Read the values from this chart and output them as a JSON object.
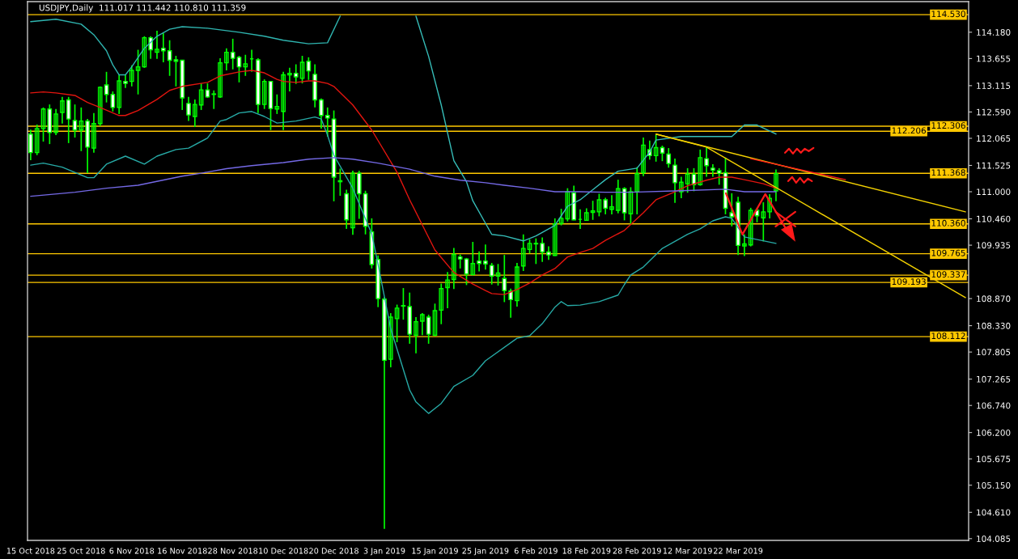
{
  "chart_data": {
    "type": "candlestick",
    "title": "USDJPY,Daily  111.017 111.442 110.810 111.359",
    "color": "#00ff00",
    "categories": [
      "15 Oct 2018",
      null,
      null,
      null,
      null,
      null,
      null,
      null,
      "25 Oct 2018",
      null,
      null,
      null,
      null,
      null,
      null,
      null,
      "6 Nov 2018",
      null,
      null,
      null,
      null,
      null,
      null,
      null,
      "16 Nov 2018",
      null,
      null,
      null,
      null,
      null,
      null,
      null,
      "28 Nov 2018",
      null,
      null,
      null,
      null,
      null,
      null,
      null,
      "10 Dec 2018",
      null,
      null,
      null,
      null,
      null,
      null,
      null,
      "20 Dec 2018",
      null,
      null,
      null,
      null,
      null,
      null,
      null,
      "3 Jan 2019",
      null,
      null,
      null,
      null,
      null,
      null,
      null,
      "15 Jan 2019",
      null,
      null,
      null,
      null,
      null,
      null,
      null,
      "25 Jan 2019",
      null,
      null,
      null,
      null,
      null,
      null,
      null,
      "6 Feb 2019",
      null,
      null,
      null,
      null,
      null,
      null,
      null,
      "18 Feb 2019",
      null,
      null,
      null,
      null,
      null,
      null,
      null,
      "28 Feb 2019",
      null,
      null,
      null,
      null,
      null,
      null,
      null,
      "12 Mar 2019",
      null,
      null,
      null,
      null,
      null,
      null,
      null,
      "22 Mar 2019",
      null,
      null,
      null,
      null,
      null,
      null,
      null,
      null,
      null,
      null,
      null,
      null,
      null,
      null,
      null,
      null,
      null,
      null,
      null,
      null,
      null,
      null,
      null,
      null,
      null,
      null,
      null,
      null,
      null,
      null,
      null,
      null,
      null,
      null,
      null,
      null
    ],
    "ohlc": [
      [
        112.15,
        112.24,
        111.63,
        111.78
      ],
      [
        111.78,
        112.34,
        111.73,
        112.26
      ],
      [
        112.26,
        112.68,
        112.0,
        112.65
      ],
      [
        112.65,
        112.74,
        111.95,
        112.18
      ],
      [
        112.18,
        112.65,
        112.13,
        112.55
      ],
      [
        112.58,
        112.89,
        112.36,
        112.81
      ],
      [
        112.83,
        112.89,
        111.97,
        112.45
      ],
      [
        112.42,
        112.74,
        112.08,
        112.23
      ],
      [
        112.23,
        112.68,
        111.81,
        112.41
      ],
      [
        112.41,
        112.45,
        111.37,
        111.89
      ],
      [
        111.87,
        112.57,
        111.78,
        112.36
      ],
      [
        112.36,
        113.1,
        112.31,
        113.08
      ],
      [
        113.13,
        113.39,
        112.78,
        112.94
      ],
      [
        112.94,
        113.0,
        112.6,
        112.68
      ],
      [
        112.68,
        113.33,
        112.55,
        113.21
      ],
      [
        113.2,
        113.34,
        113.07,
        113.16
      ],
      [
        113.2,
        113.52,
        113.1,
        113.42
      ],
      [
        113.42,
        113.83,
        112.94,
        113.49
      ],
      [
        113.49,
        114.1,
        113.47,
        114.07
      ],
      [
        114.07,
        114.1,
        113.65,
        113.83
      ],
      [
        113.78,
        114.21,
        113.65,
        113.84
      ],
      [
        113.86,
        114.16,
        113.58,
        113.81
      ],
      [
        113.81,
        114.02,
        113.31,
        113.62
      ],
      [
        113.63,
        113.71,
        113.1,
        113.6
      ],
      [
        113.62,
        113.63,
        112.63,
        112.87
      ],
      [
        112.76,
        112.89,
        112.41,
        112.53
      ],
      [
        112.5,
        112.84,
        112.29,
        112.74
      ],
      [
        112.73,
        113.16,
        112.63,
        113.03
      ],
      [
        113.03,
        113.16,
        112.87,
        112.89
      ],
      [
        112.95,
        113.02,
        112.65,
        112.94
      ],
      [
        112.89,
        113.66,
        112.87,
        113.57
      ],
      [
        113.57,
        113.86,
        113.42,
        113.78
      ],
      [
        113.78,
        114.05,
        113.44,
        113.66
      ],
      [
        113.68,
        113.71,
        113.18,
        113.49
      ],
      [
        113.49,
        113.73,
        113.31,
        113.55
      ],
      [
        113.65,
        113.83,
        113.39,
        113.65
      ],
      [
        113.63,
        113.66,
        112.57,
        112.74
      ],
      [
        112.74,
        113.24,
        112.65,
        113.2
      ],
      [
        113.2,
        113.21,
        112.23,
        112.66
      ],
      [
        112.65,
        112.94,
        112.55,
        112.7
      ],
      [
        112.6,
        113.39,
        112.23,
        113.33
      ],
      [
        113.33,
        113.47,
        113.0,
        113.36
      ],
      [
        113.36,
        113.54,
        113.15,
        113.29
      ],
      [
        113.26,
        113.71,
        113.16,
        113.58
      ],
      [
        113.6,
        113.68,
        113.23,
        113.41
      ],
      [
        113.34,
        113.54,
        112.68,
        112.83
      ],
      [
        112.83,
        112.86,
        112.26,
        112.52
      ],
      [
        112.52,
        112.68,
        112.1,
        112.47
      ],
      [
        112.45,
        112.62,
        110.81,
        111.29
      ],
      [
        111.22,
        111.46,
        110.92,
        111.2
      ],
      [
        110.96,
        111.04,
        110.26,
        110.44
      ],
      [
        110.28,
        111.42,
        110.14,
        111.37
      ],
      [
        111.37,
        111.42,
        110.46,
        110.96
      ],
      [
        110.96,
        111.02,
        110.15,
        110.31
      ],
      [
        110.2,
        110.47,
        109.47,
        109.55
      ],
      [
        109.65,
        109.73,
        108.7,
        108.87
      ],
      [
        108.86,
        108.9,
        104.28,
        107.64
      ],
      [
        107.66,
        108.58,
        107.5,
        108.5
      ],
      [
        108.47,
        108.75,
        108.0,
        108.68
      ],
      [
        108.73,
        109.08,
        108.45,
        108.72
      ],
      [
        108.71,
        108.99,
        107.97,
        108.16
      ],
      [
        108.14,
        108.5,
        107.78,
        108.41
      ],
      [
        108.42,
        108.58,
        108.14,
        108.55
      ],
      [
        108.5,
        108.55,
        107.97,
        108.16
      ],
      [
        108.14,
        108.77,
        108.12,
        108.63
      ],
      [
        108.64,
        109.17,
        108.36,
        109.07
      ],
      [
        109.09,
        109.4,
        108.68,
        109.24
      ],
      [
        109.25,
        109.88,
        109.06,
        109.75
      ],
      [
        109.7,
        109.75,
        109.47,
        109.66
      ],
      [
        109.66,
        109.68,
        109.14,
        109.36
      ],
      [
        109.35,
        110.0,
        109.33,
        109.57
      ],
      [
        109.62,
        109.81,
        109.41,
        109.57
      ],
      [
        109.62,
        109.95,
        109.45,
        109.56
      ],
      [
        109.53,
        109.58,
        109.15,
        109.32
      ],
      [
        109.32,
        109.56,
        109.13,
        109.38
      ],
      [
        109.27,
        109.74,
        108.8,
        109.03
      ],
      [
        109.02,
        109.07,
        108.49,
        108.85
      ],
      [
        108.83,
        109.58,
        108.71,
        109.5
      ],
      [
        109.52,
        110.15,
        109.42,
        109.87
      ],
      [
        109.85,
        110.05,
        109.77,
        109.97
      ],
      [
        109.97,
        110.07,
        109.56,
        109.96
      ],
      [
        109.97,
        110.09,
        109.6,
        109.8
      ],
      [
        109.8,
        109.91,
        109.64,
        109.74
      ],
      [
        109.73,
        110.47,
        109.72,
        110.36
      ],
      [
        110.37,
        110.66,
        110.33,
        110.47
      ],
      [
        110.46,
        111.07,
        110.41,
        111.0
      ],
      [
        110.98,
        111.12,
        110.43,
        110.44
      ],
      [
        110.45,
        110.65,
        110.26,
        110.45
      ],
      [
        110.43,
        110.67,
        110.43,
        110.58
      ],
      [
        110.59,
        110.82,
        110.44,
        110.62
      ],
      [
        110.6,
        110.96,
        110.51,
        110.84
      ],
      [
        110.84,
        110.88,
        110.55,
        110.67
      ],
      [
        110.65,
        110.93,
        110.55,
        110.7
      ],
      [
        110.63,
        111.24,
        110.57,
        111.06
      ],
      [
        111.06,
        111.09,
        110.43,
        110.58
      ],
      [
        110.56,
        111.09,
        110.35,
        111.0
      ],
      [
        111.0,
        111.49,
        110.55,
        111.36
      ],
      [
        111.38,
        112.08,
        111.31,
        111.93
      ],
      [
        111.84,
        112.02,
        111.64,
        111.72
      ],
      [
        111.72,
        112.14,
        111.6,
        111.88
      ],
      [
        111.88,
        111.92,
        111.61,
        111.77
      ],
      [
        111.75,
        111.87,
        111.48,
        111.56
      ],
      [
        111.53,
        111.66,
        110.78,
        111.18
      ],
      [
        111.0,
        111.3,
        110.87,
        111.19
      ],
      [
        111.16,
        111.47,
        110.98,
        111.35
      ],
      [
        111.35,
        111.47,
        111.01,
        111.14
      ],
      [
        111.14,
        111.84,
        111.12,
        111.68
      ],
      [
        111.66,
        111.9,
        111.3,
        111.52
      ],
      [
        111.47,
        111.55,
        111.3,
        111.43
      ],
      [
        111.42,
        111.47,
        111.14,
        111.37
      ],
      [
        111.38,
        111.68,
        110.55,
        110.67
      ],
      [
        110.58,
        110.97,
        110.31,
        110.5
      ],
      [
        110.79,
        110.9,
        109.74,
        109.93
      ],
      [
        109.92,
        110.15,
        109.72,
        109.96
      ],
      [
        109.94,
        110.68,
        109.91,
        110.63
      ],
      [
        110.63,
        110.68,
        110.39,
        110.52
      ],
      [
        110.48,
        110.79,
        110.01,
        110.6
      ],
      [
        110.6,
        110.95,
        110.47,
        110.87
      ],
      [
        111.017,
        111.442,
        110.81,
        111.359
      ],
      null,
      null,
      null,
      null,
      null,
      null,
      null,
      null,
      null,
      null,
      null,
      null,
      null,
      null,
      null,
      null,
      null,
      null,
      null,
      null,
      null,
      null,
      null,
      null,
      null,
      null,
      null,
      null,
      null,
      null
    ],
    "series": [
      {
        "type": "line",
        "color": "#2fb5b0",
        "values": [
          114.39,
          null,
          null,
          null,
          114.44,
          null,
          null,
          null,
          114.34,
          null,
          114.13,
          null,
          113.81,
          113.53,
          113.33,
          113.33,
          113.49,
          null,
          113.86,
          null,
          114.1,
          null,
          114.24,
          null,
          114.29,
          null,
          null,
          null,
          114.26,
          null,
          null,
          null,
          null,
          114.18,
          null,
          null,
          null,
          114.1,
          null,
          null,
          114.02,
          null,
          null,
          null,
          113.95,
          null,
          null,
          113.97,
          null,
          114.5,
          null,
          null,
          null,
          null,
          null,
          null,
          null,
          null,
          null,
          null,
          null,
          null,
          null,
          null,
          null,
          null,
          null,
          null,
          null,
          null,
          null,
          null,
          null,
          null,
          null,
          null,
          null,
          null,
          null,
          null,
          null,
          null,
          null,
          null,
          null,
          null,
          null,
          null,
          null,
          null,
          null,
          null,
          null,
          null,
          null,
          null,
          null,
          null,
          null,
          null,
          null,
          null,
          null,
          null,
          null,
          null,
          null,
          null,
          null,
          null,
          null,
          null,
          null,
          null,
          null,
          null,
          null,
          null,
          null,
          null,
          null,
          null,
          null,
          null,
          null,
          null,
          null,
          null,
          null,
          null,
          null,
          null,
          null,
          null,
          null,
          null,
          null,
          null,
          null,
          null,
          null,
          null,
          null,
          null,
          null,
          null,
          null,
          null,
          null
        ]
      },
      {
        "type": "line",
        "color": "#36bdb8",
        "values": [
          null,
          null,
          null,
          null,
          null,
          null,
          null,
          null,
          null,
          null,
          null,
          null,
          null,
          null,
          null,
          null,
          null,
          null,
          null,
          null,
          null,
          null,
          null,
          null,
          null,
          null,
          null,
          null,
          null,
          null,
          null,
          null,
          null,
          null,
          null,
          null,
          null,
          null,
          null,
          null,
          null,
          null,
          null,
          null,
          null,
          null,
          null,
          null,
          null,
          null,
          null,
          null,
          null,
          null,
          null,
          null,
          null,
          null,
          null,
          null,
          null,
          114.5,
          null,
          113.7,
          null,
          112.73,
          null,
          111.62,
          null,
          111.2,
          110.82,
          null,
          null,
          110.15,
          null,
          110.12,
          null,
          null,
          110.02,
          null,
          110.12,
          null,
          null,
          110.33,
          null,
          110.71,
          null,
          110.84,
          null,
          111.04,
          null,
          111.24,
          null,
          111.41,
          null,
          null,
          111.47,
          null,
          111.79,
          112.03,
          null,
          null,
          null,
          112.1,
          null,
          null,
          null,
          null,
          null,
          null,
          null,
          112.1,
          null,
          112.33,
          null,
          112.33,
          null,
          null,
          112.15,
          null,
          null,
          null,
          null,
          null,
          null,
          null,
          null,
          null,
          null,
          null,
          null,
          null,
          null,
          null,
          null,
          null,
          null,
          null,
          null,
          null,
          null,
          null,
          null,
          null,
          null,
          null,
          null,
          null,
          null
        ]
      },
      {
        "type": "line",
        "color": "#27aaa6",
        "values": [
          111.53,
          null,
          111.57,
          null,
          null,
          111.49,
          null,
          null,
          null,
          111.28,
          111.28,
          null,
          111.55,
          null,
          null,
          111.71,
          null,
          null,
          111.55,
          null,
          111.71,
          null,
          null,
          111.84,
          null,
          111.87,
          null,
          null,
          112.07,
          null,
          112.41,
          112.44,
          null,
          112.57,
          null,
          112.6,
          null,
          112.5,
          null,
          112.37,
          null,
          null,
          112.41,
          null,
          null,
          112.49,
          112.45,
          112.13,
          111.73,
          null,
          null,
          111.07,
          null,
          null,
          110.16,
          109.55,
          null,
          108.27,
          null,
          null,
          107.05,
          106.81,
          null,
          106.58,
          null,
          106.78,
          null,
          107.12,
          null,
          null,
          107.34,
          null,
          107.63,
          null,
          null,
          null,
          null,
          108.08,
          null,
          108.13,
          null,
          108.37,
          null,
          108.7,
          108.81,
          108.73,
          null,
          108.74,
          null,
          null,
          108.81,
          null,
          null,
          108.94,
          109.15,
          109.34,
          null,
          109.5,
          null,
          null,
          109.87,
          null,
          null,
          null,
          110.15,
          null,
          110.26,
          null,
          110.42,
          null,
          110.5,
          110.47,
          null,
          110.1,
          null,
          null,
          null,
          null,
          109.97,
          null,
          null,
          null,
          null,
          null,
          null,
          null,
          null,
          null,
          null,
          null,
          null,
          null,
          null,
          null,
          null,
          null,
          null,
          null,
          null,
          null,
          null,
          null,
          null,
          null,
          null,
          null,
          null,
          null,
          null
        ]
      },
      {
        "type": "line",
        "color": "#e3150f",
        "values": [
          112.97,
          null,
          112.99,
          null,
          112.97,
          null,
          null,
          112.92,
          null,
          112.78,
          null,
          112.68,
          null,
          null,
          112.52,
          112.52,
          null,
          112.62,
          null,
          null,
          112.84,
          null,
          113.02,
          null,
          113.1,
          null,
          null,
          null,
          113.18,
          null,
          113.31,
          null,
          null,
          113.39,
          null,
          113.42,
          null,
          113.37,
          null,
          113.24,
          113.2,
          null,
          113.18,
          null,
          113.21,
          113.21,
          null,
          113.16,
          113.1,
          null,
          null,
          112.73,
          null,
          null,
          112.23,
          null,
          null,
          null,
          111.39,
          null,
          110.84,
          null,
          110.34,
          null,
          109.84,
          null,
          null,
          109.39,
          null,
          null,
          109.16,
          null,
          109.03,
          108.97,
          null,
          108.95,
          null,
          109.05,
          null,
          109.18,
          null,
          109.34,
          null,
          109.47,
          null,
          109.7,
          null,
          109.79,
          null,
          109.87,
          null,
          110.03,
          null,
          null,
          110.23,
          null,
          null,
          110.58,
          null,
          110.84,
          null,
          null,
          111.0,
          null,
          111.12,
          null,
          null,
          111.23,
          null,
          111.29,
          null,
          111.29,
          null,
          111.24,
          null,
          null,
          111.16,
          null,
          111.07,
          null,
          null,
          null,
          null,
          null,
          null,
          null,
          null,
          null,
          null,
          null,
          null,
          null,
          null,
          null,
          null,
          null,
          null,
          null,
          null,
          null,
          null,
          null,
          null,
          null,
          null,
          null,
          null,
          null,
          null
        ]
      },
      {
        "type": "line",
        "color": "#7469e6",
        "values": [
          110.91,
          null,
          null,
          null,
          null,
          null,
          null,
          110.99,
          null,
          null,
          null,
          null,
          111.07,
          null,
          null,
          null,
          null,
          111.13,
          null,
          null,
          null,
          null,
          null,
          null,
          111.31,
          null,
          null,
          111.37,
          null,
          null,
          null,
          111.46,
          null,
          null,
          null,
          111.52,
          null,
          null,
          null,
          null,
          111.58,
          null,
          null,
          null,
          111.65,
          null,
          null,
          null,
          111.68,
          null,
          null,
          111.65,
          null,
          null,
          null,
          111.57,
          null,
          null,
          null,
          null,
          111.45,
          null,
          null,
          null,
          111.31,
          null,
          null,
          null,
          111.23,
          null,
          null,
          null,
          111.18,
          null,
          null,
          111.13,
          null,
          null,
          null,
          111.07,
          null,
          null,
          null,
          111.0,
          null,
          null,
          null,
          111.0,
          null,
          null,
          null,
          110.99,
          null,
          null,
          null,
          110.99,
          null,
          null,
          null,
          null,
          null,
          null,
          null,
          111.02,
          null,
          null,
          null,
          null,
          null,
          null,
          111.05,
          null,
          null,
          111.0,
          null,
          null,
          null,
          null,
          111.0,
          null,
          null,
          null,
          null,
          null,
          null,
          null,
          null,
          null,
          null,
          null,
          null,
          null,
          null,
          null,
          null,
          null,
          null,
          null,
          null,
          null,
          null,
          null,
          null,
          null,
          null,
          null,
          null,
          null,
          null
        ]
      },
      {
        "type": "line",
        "color": "#f2d000",
        "values": [
          null,
          null,
          null,
          null,
          null,
          null,
          null,
          null,
          null,
          null,
          null,
          null,
          null,
          null,
          null,
          null,
          null,
          null,
          null,
          null,
          null,
          null,
          null,
          null,
          null,
          null,
          null,
          null,
          null,
          null,
          null,
          null,
          null,
          null,
          null,
          null,
          null,
          null,
          null,
          null,
          null,
          null,
          null,
          null,
          null,
          null,
          null,
          null,
          null,
          null,
          null,
          null,
          null,
          null,
          null,
          null,
          null,
          null,
          null,
          null,
          null,
          null,
          null,
          null,
          null,
          null,
          null,
          null,
          null,
          null,
          null,
          null,
          null,
          null,
          null,
          null,
          null,
          null,
          null,
          null,
          null,
          null,
          null,
          null,
          null,
          null,
          null,
          null,
          null,
          null,
          null,
          null,
          null,
          null,
          null,
          null,
          null,
          null,
          null,
          112.15,
          null,
          null,
          null,
          null,
          null,
          null,
          null,
          null,
          null,
          null,
          null,
          null,
          null,
          null,
          null,
          null,
          null,
          null,
          null,
          null,
          null,
          null,
          null,
          null,
          null,
          null,
          null,
          null,
          null,
          null,
          null,
          null,
          null,
          null,
          null,
          null,
          null,
          null,
          null,
          null,
          null,
          null,
          null,
          null,
          null,
          null,
          null,
          null,
          110.6
        ]
      },
      {
        "type": "line",
        "color": "#f2d000",
        "values": [
          null,
          null,
          null,
          null,
          null,
          null,
          null,
          null,
          null,
          null,
          null,
          null,
          null,
          null,
          null,
          null,
          null,
          null,
          null,
          null,
          null,
          null,
          null,
          null,
          null,
          null,
          null,
          null,
          null,
          null,
          null,
          null,
          null,
          null,
          null,
          null,
          null,
          null,
          null,
          null,
          null,
          null,
          null,
          null,
          null,
          null,
          null,
          null,
          null,
          null,
          null,
          null,
          null,
          null,
          null,
          null,
          null,
          null,
          null,
          null,
          null,
          null,
          null,
          null,
          null,
          null,
          null,
          null,
          null,
          null,
          null,
          null,
          null,
          null,
          null,
          null,
          null,
          null,
          null,
          null,
          null,
          null,
          null,
          null,
          null,
          null,
          null,
          null,
          null,
          null,
          null,
          null,
          null,
          null,
          null,
          null,
          null,
          null,
          null,
          112.15,
          null,
          null,
          null,
          null,
          null,
          null,
          null,
          111.89,
          null,
          null,
          null,
          null,
          null,
          null,
          null,
          null,
          null,
          null,
          null,
          null,
          null,
          null,
          null,
          null,
          null,
          null,
          null,
          null,
          null,
          null,
          null,
          null,
          null,
          null,
          null,
          null,
          null,
          null,
          null,
          null,
          null,
          null,
          null,
          null,
          null,
          null,
          null,
          null,
          108.89
        ]
      },
      {
        "type": "line",
        "color": "#ff1a1a",
        "values": [
          null,
          null,
          null,
          null,
          null,
          null,
          null,
          null,
          null,
          null,
          null,
          null,
          null,
          null,
          null,
          null,
          null,
          null,
          null,
          null,
          null,
          null,
          null,
          null,
          null,
          null,
          null,
          null,
          null,
          null,
          null,
          null,
          null,
          null,
          null,
          null,
          null,
          null,
          null,
          null,
          null,
          null,
          null,
          null,
          null,
          null,
          null,
          null,
          null,
          null,
          null,
          null,
          null,
          null,
          null,
          null,
          null,
          null,
          null,
          null,
          null,
          null,
          null,
          null,
          null,
          null,
          null,
          null,
          null,
          null,
          null,
          null,
          null,
          null,
          null,
          null,
          null,
          null,
          null,
          null,
          null,
          null,
          null,
          null,
          null,
          null,
          null,
          null,
          null,
          null,
          null,
          null,
          null,
          null,
          null,
          null,
          null,
          null,
          null,
          null,
          null,
          null,
          null,
          null,
          null,
          null,
          null,
          null,
          null,
          null,
          null,
          null,
          null,
          null,
          111.66,
          null,
          null,
          null,
          null,
          null,
          null,
          null,
          null,
          null,
          null,
          null,
          null,
          null,
          null,
          111.24,
          null,
          null,
          null,
          null,
          null,
          null,
          null,
          null,
          null,
          null,
          null,
          null,
          null,
          null,
          null,
          null,
          null,
          null,
          null
        ]
      }
    ],
    "ref_lines": [
      {
        "axis": "y",
        "value": 114.53,
        "label": "114.530",
        "color": "#ffc800"
      },
      {
        "axis": "y",
        "value": 112.306,
        "label": "112.306",
        "color": "#ffc800"
      },
      {
        "axis": "y",
        "value": 112.206,
        "label": "112.206",
        "color": "#ffc800"
      },
      {
        "axis": "y",
        "value": 111.368,
        "label": "111.368",
        "color": "#ffc800"
      },
      {
        "axis": "y",
        "value": 110.36,
        "label": "110.360",
        "color": "#ffc800"
      },
      {
        "axis": "y",
        "value": 109.765,
        "label": "109.765",
        "color": "#ffc800"
      },
      {
        "axis": "y",
        "value": 109.337,
        "label": "109.337",
        "color": "#ffc800"
      },
      {
        "axis": "y",
        "value": 109.193,
        "label": "109.193",
        "color": "#ffc800"
      },
      {
        "axis": "y",
        "value": 108.112,
        "label": "108.112",
        "color": "#ffc800"
      }
    ],
    "ylim": [
      104.05,
      114.79
    ],
    "yticks": [
      {
        "value": 114.18,
        "label": "114.180"
      },
      113.655,
      113.115,
      {
        "value": 112.59,
        "label": "112.590"
      },
      112.065,
      111.525,
      {
        "value": 111.0,
        "label": "111.000"
      },
      {
        "value": 110.46,
        "label": "110.460"
      },
      109.935,
      {
        "value": 108.87,
        "label": "108.870"
      },
      {
        "value": 108.33,
        "label": "108.330"
      },
      107.805,
      107.265,
      {
        "value": 106.74,
        "label": "106.740"
      },
      {
        "value": 106.2,
        "label": "106.200"
      },
      105.675,
      {
        "value": 105.15,
        "label": "105.150"
      },
      {
        "value": 104.61,
        "label": "104.610"
      },
      104.085
    ],
    "grid": false
  }
}
